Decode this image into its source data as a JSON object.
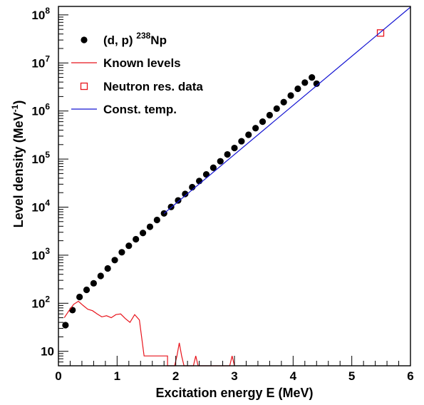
{
  "chart_data": {
    "type": "scatter",
    "xlabel": "Excitation energy E (MeV)",
    "ylabel": "Level density (MeV",
    "ylabel_sup": "-1",
    "ylabel_tail": ")",
    "xlim": [
      0,
      6
    ],
    "ylim": [
      5,
      150000000
    ],
    "yscale": "log",
    "grid": false,
    "legend_position": "top-left",
    "x_ticks": [
      0,
      1,
      2,
      3,
      4,
      5,
      6
    ],
    "x_tick_labels": [
      "0",
      "1",
      "2",
      "3",
      "4",
      "5",
      "6"
    ],
    "y_ticks": [
      10,
      100,
      1000,
      10000,
      100000,
      1000000,
      10000000,
      100000000
    ],
    "y_tick_labels": [
      "10",
      "10",
      "10",
      "10",
      "10",
      "10",
      "10",
      "10"
    ],
    "y_tick_exponents": [
      "",
      "2",
      "3",
      "4",
      "5",
      "6",
      "7",
      "8"
    ],
    "legend": [
      {
        "label": "(d, p)",
        "sup": "238",
        "suffix": "Np",
        "marker": "filled-circle",
        "color": "#000000"
      },
      {
        "label": "Known levels",
        "marker": "line",
        "color": "#e8141c"
      },
      {
        "label": "Neutron res. data",
        "marker": "open-square",
        "color": "#e8141c"
      },
      {
        "label": "Const. temp.",
        "marker": "line",
        "color": "#1414d2"
      }
    ],
    "series": [
      {
        "name": "(d, p) 238Np",
        "type": "scatter",
        "color": "#000000",
        "x": [
          0.12,
          0.24,
          0.36,
          0.48,
          0.6,
          0.72,
          0.84,
          0.96,
          1.08,
          1.2,
          1.32,
          1.44,
          1.56,
          1.68,
          1.8,
          1.92,
          2.04,
          2.16,
          2.28,
          2.4,
          2.52,
          2.64,
          2.76,
          2.88,
          3.0,
          3.12,
          3.24,
          3.36,
          3.48,
          3.6,
          3.72,
          3.84,
          3.96,
          4.08,
          4.2,
          4.32,
          4.4
        ],
        "y": [
          35,
          72,
          135,
          190,
          260,
          370,
          530,
          790,
          1150,
          1570,
          2150,
          2900,
          3900,
          5400,
          7400,
          10100,
          13800,
          18800,
          26000,
          35000,
          48000,
          66000,
          90000,
          125000,
          170000,
          235000,
          320000,
          440000,
          600000,
          820000,
          1120000,
          1530000,
          2100000,
          2900000,
          3900000,
          5000000,
          3700000
        ]
      },
      {
        "name": "Known levels",
        "type": "line",
        "color": "#e8141c",
        "x": [
          0.1,
          0.18,
          0.26,
          0.34,
          0.42,
          0.5,
          0.58,
          0.66,
          0.74,
          0.82,
          0.9,
          0.98,
          1.06,
          1.14,
          1.22,
          1.3,
          1.38,
          1.46,
          1.54,
          1.62,
          1.7,
          1.78,
          1.86,
          1.86,
          1.98,
          2.02,
          2.06,
          2.1,
          2.14,
          2.3,
          2.34,
          2.38,
          2.92,
          2.96,
          3.0
        ],
        "y": [
          50,
          70,
          95,
          110,
          90,
          75,
          70,
          60,
          52,
          55,
          50,
          58,
          60,
          48,
          40,
          58,
          45,
          8,
          8,
          8,
          8,
          8,
          8,
          0.1,
          0.1,
          8,
          15,
          8,
          0.1,
          0.1,
          8,
          0.1,
          0.1,
          8,
          0.1
        ]
      },
      {
        "name": "Neutron res. data",
        "type": "scatter",
        "color": "#e8141c",
        "x": [
          5.49
        ],
        "y": [
          42000000
        ]
      },
      {
        "name": "Const. temp.",
        "type": "line",
        "color": "#1414d2",
        "x": [
          1.8,
          6.0
        ],
        "y": [
          7400,
          145000000
        ]
      }
    ]
  }
}
